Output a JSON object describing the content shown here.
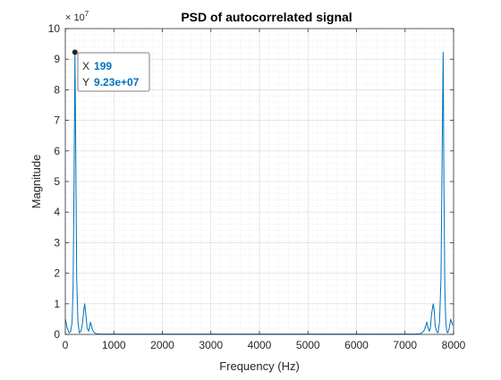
{
  "chart_data": {
    "type": "line",
    "title": "PSD of autocorrelated signal",
    "xlabel": "Frequency (Hz)",
    "ylabel": "Magnitude",
    "xlim": [
      0,
      8000
    ],
    "ylim": [
      0,
      10
    ],
    "y_exponent_base": "× 10",
    "y_exponent_power": "7",
    "x_ticks": [
      0,
      1000,
      2000,
      3000,
      4000,
      5000,
      6000,
      7000,
      8000
    ],
    "y_ticks": [
      0,
      1,
      2,
      3,
      4,
      5,
      6,
      7,
      8,
      9,
      10
    ],
    "grid": true,
    "minor_grid": true,
    "line_color": "#0072BD",
    "series": [
      {
        "x": [
          0,
          40,
          80,
          110,
          140,
          160,
          180,
          199,
          215,
          235,
          260,
          290,
          320,
          350,
          380,
          400,
          420,
          450,
          480,
          500,
          520,
          560,
          600,
          650,
          700,
          800,
          1000,
          2000,
          3000,
          4000,
          5000,
          6000,
          7000,
          7200,
          7300,
          7350,
          7400,
          7450,
          7470,
          7500,
          7520,
          7550,
          7580,
          7600,
          7620,
          7650,
          7680,
          7710,
          7740,
          7765,
          7785,
          7801,
          7820,
          7840,
          7860,
          7880,
          7910,
          7940,
          7980
        ],
        "y": [
          0.5,
          0.2,
          0.05,
          0.1,
          0.4,
          1.5,
          5.0,
          9.23,
          6.0,
          1.8,
          0.4,
          0.05,
          0.1,
          0.3,
          0.8,
          1.0,
          0.7,
          0.2,
          0.1,
          0.25,
          0.4,
          0.15,
          0.05,
          0.02,
          0.01,
          0.01,
          0.01,
          0.01,
          0.01,
          0.01,
          0.01,
          0.01,
          0.01,
          0.01,
          0.02,
          0.05,
          0.15,
          0.4,
          0.25,
          0.1,
          0.2,
          0.7,
          1.0,
          0.8,
          0.3,
          0.1,
          0.05,
          0.4,
          1.8,
          6.0,
          9.23,
          5.0,
          1.5,
          0.4,
          0.1,
          0.05,
          0.2,
          0.5,
          0.3
        ]
      }
    ],
    "datatip": {
      "x_label": "X",
      "x_value": "199",
      "y_label": "Y",
      "y_value": "9.23e+07",
      "point_x": 199,
      "point_y": 9.23,
      "value_color": "#0072BD"
    }
  }
}
